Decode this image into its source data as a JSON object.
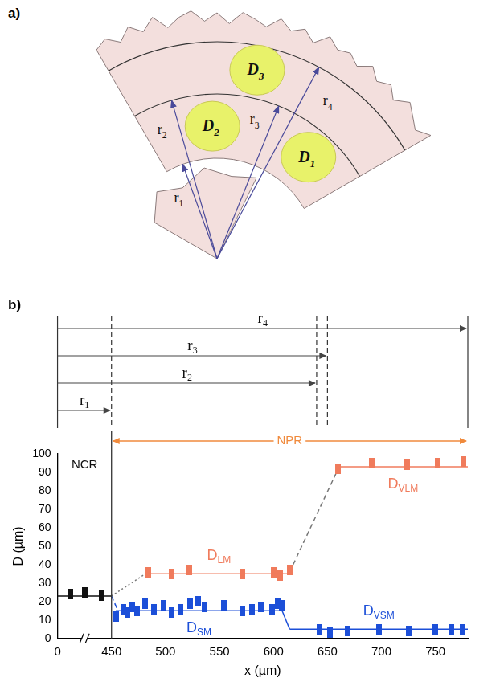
{
  "panel_a": {
    "panel": "a)",
    "radii": [
      {
        "label": "r",
        "subscript": "1"
      },
      {
        "label": "r",
        "subscript": "2"
      },
      {
        "label": "r",
        "subscript": "3"
      },
      {
        "label": "r",
        "subscript": "4"
      }
    ],
    "domains": [
      {
        "label": "D",
        "subscript": "1"
      },
      {
        "label": "D",
        "subscript": "2"
      },
      {
        "label": "D",
        "subscript": "3"
      }
    ]
  },
  "chart_data": {
    "panel": "b)",
    "type": "scatter",
    "x_label": "x (µm)",
    "y_label": "D (µm)",
    "xlim": [
      0,
      780
    ],
    "xticks": [
      0,
      450,
      500,
      550,
      600,
      650,
      700,
      750
    ],
    "ylim": [
      0,
      100
    ],
    "yticks": [
      0,
      10,
      20,
      30,
      40,
      50,
      60,
      70,
      80,
      90,
      100
    ],
    "grid": false,
    "radii": [
      {
        "label": "r",
        "subscript": "1",
        "value": 450
      },
      {
        "label": "r",
        "subscript": "2",
        "value": 640
      },
      {
        "label": "r",
        "subscript": "3",
        "value": 650
      },
      {
        "label": "r",
        "subscript": "4",
        "value": 780
      }
    ],
    "regions": [
      {
        "label": "NCR",
        "x": [
          0,
          450
        ]
      },
      {
        "label": "NPR",
        "x": [
          450,
          780
        ],
        "color": "#f08a3c"
      }
    ],
    "series": [
      {
        "color": "#111111",
        "marker": "square",
        "x": [
          110,
          229,
          371
        ],
        "values": [
          24,
          25,
          23
        ],
        "fit": {
          "x": [
            0,
            450
          ],
          "values": [
            23,
            23
          ]
        }
      },
      {
        "label": "D",
        "subscript": "LM",
        "color": "#f07b5c",
        "marker": "square",
        "x": [
          484,
          506,
          522,
          571,
          600,
          606,
          615
        ],
        "values": [
          36,
          35,
          37,
          35,
          36,
          34,
          37
        ],
        "fit": {
          "x": [
            484,
            615
          ],
          "values": [
            35,
            35
          ]
        }
      },
      {
        "label": "D",
        "subscript": "VLM",
        "color": "#f07b5c",
        "marker": "square",
        "x": [
          660,
          691,
          724,
          752,
          776
        ],
        "values": [
          92,
          95,
          94,
          95,
          96
        ],
        "fit": {
          "x": [
            660,
            780
          ],
          "values": [
            93,
            93
          ]
        }
      },
      {
        "label": "D",
        "subscript": "SM",
        "color": "#1c4fd8",
        "marker": "square",
        "x": [
          454,
          461,
          465,
          469,
          474,
          481,
          489,
          498,
          506,
          514,
          523,
          530,
          536,
          554,
          571,
          580,
          588,
          599,
          604,
          608
        ],
        "values": [
          12,
          16,
          14,
          17,
          15,
          19,
          16,
          18,
          14,
          16,
          19,
          20,
          17,
          18,
          15,
          16,
          17,
          16,
          19,
          18
        ],
        "fit": {
          "x": [
            454,
            608
          ],
          "values": [
            15,
            15
          ]
        }
      },
      {
        "label": "D",
        "subscript": "VSM",
        "color": "#1c4fd8",
        "marker": "square",
        "x": [
          643,
          652,
          669,
          698,
          725,
          750,
          765,
          775
        ],
        "values": [
          5,
          3,
          4,
          5,
          4,
          5,
          5,
          5
        ],
        "fit": {
          "x": [
            615,
            780
          ],
          "values": [
            5,
            5
          ]
        }
      }
    ],
    "connectors": [
      {
        "x": [
          450,
          484
        ],
        "values": [
          23,
          36
        ],
        "color": "#777777",
        "line_style": "dotted"
      },
      {
        "x": [
          450,
          456
        ],
        "values": [
          23,
          15
        ],
        "color": "#1c4fd8",
        "line_style": "dashed"
      },
      {
        "x": [
          615,
          660
        ],
        "values": [
          36,
          92
        ],
        "color": "#777777",
        "line_style": "dashed"
      },
      {
        "x": [
          608,
          615
        ],
        "values": [
          15,
          5
        ],
        "color": "#1c4fd8",
        "line_style": "solid"
      }
    ]
  }
}
